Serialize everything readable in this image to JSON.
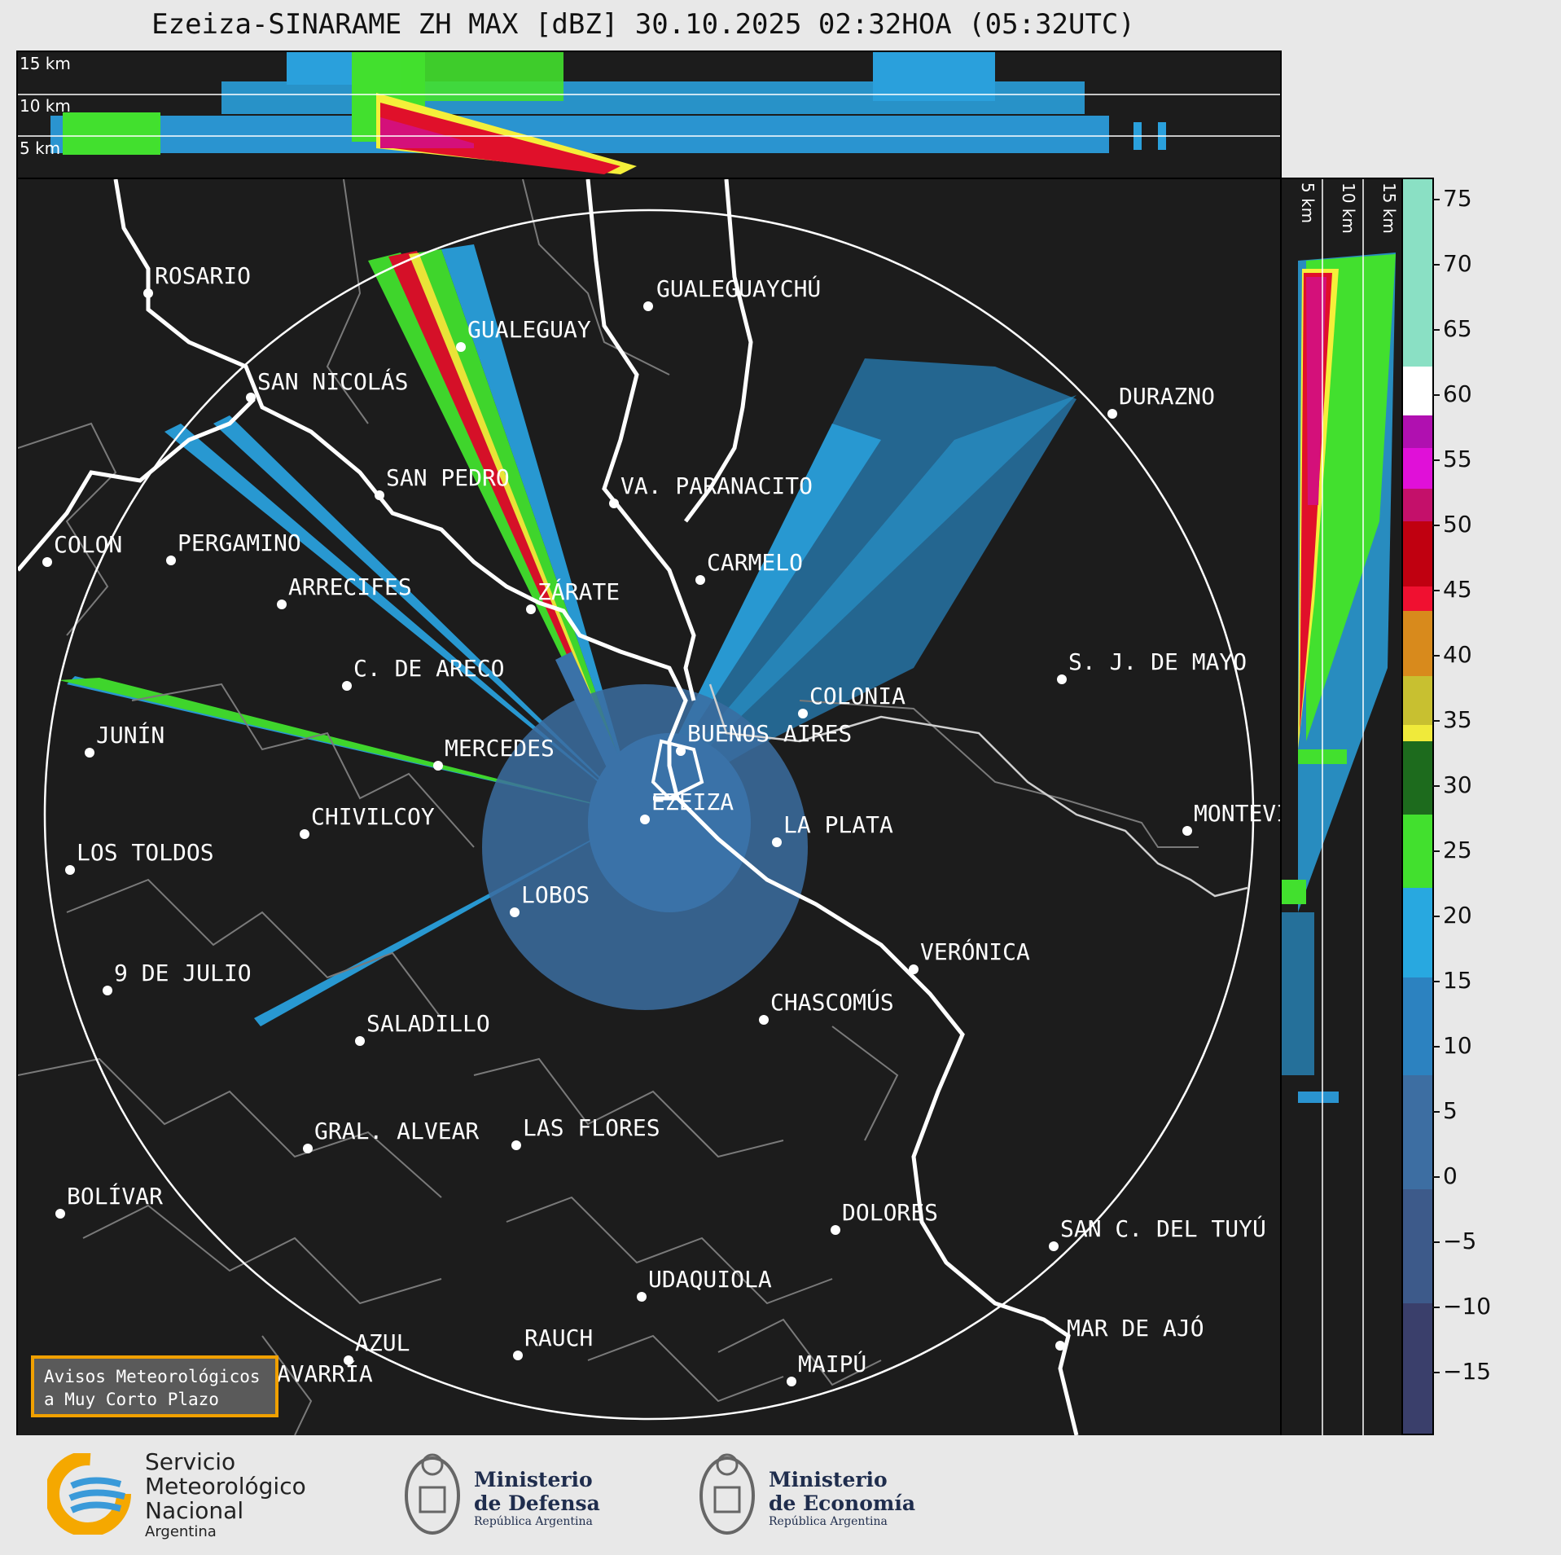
{
  "title": "Ezeiza-SINARAME ZH MAX [dBZ] 30.10.2025 02:32HOA (05:32UTC)",
  "top_panel": {
    "levels": [
      "15 km",
      "10 km",
      "5 km"
    ]
  },
  "side_panel": {
    "levels": [
      "5 km",
      "10 km",
      "15 km"
    ]
  },
  "colorbar": {
    "ticks": [
      "75",
      "70",
      "65",
      "60",
      "55",
      "50",
      "45",
      "40",
      "35",
      "30",
      "25",
      "20",
      "15",
      "10",
      "5",
      "0",
      "−5",
      "−10",
      "−15"
    ],
    "range": [
      -20,
      77
    ],
    "colors": {
      "low": "#3a3f6b",
      "mid_blue": "#3d72a8",
      "cyan": "#28a8e0",
      "green": "#42e02e",
      "dark_green": "#1d6b1d",
      "yellow": "#f5ef3a",
      "orange": "#d8901c",
      "red": "#e0102a",
      "magenta": "#e010d8",
      "purple": "#8a0a8a",
      "white": "#ffffff",
      "mint": "#88e0c0"
    }
  },
  "cities": [
    {
      "name": "ROSARIO"
    },
    {
      "name": "GUALEGUAYCHÚ"
    },
    {
      "name": "GUALEGUAY"
    },
    {
      "name": "SAN NICOLÁS"
    },
    {
      "name": "DURAZNO"
    },
    {
      "name": "SAN PEDRO"
    },
    {
      "name": "VA. PARANACITO"
    },
    {
      "name": "COLON"
    },
    {
      "name": "PERGAMINO"
    },
    {
      "name": "CARMELO"
    },
    {
      "name": "ARRECIFES"
    },
    {
      "name": "ZÁRATE"
    },
    {
      "name": "S. J. DE MAYO"
    },
    {
      "name": "C. DE ARECO"
    },
    {
      "name": "COLONIA"
    },
    {
      "name": "JUNÍN"
    },
    {
      "name": "BUENOS AIRES"
    },
    {
      "name": "MERCEDES"
    },
    {
      "name": "MONTEVIDEO"
    },
    {
      "name": "EZEIZA"
    },
    {
      "name": "CHIVILCOY"
    },
    {
      "name": "LA PLATA"
    },
    {
      "name": "LOS TOLDOS"
    },
    {
      "name": "LOBOS"
    },
    {
      "name": "VERÓNICA"
    },
    {
      "name": "9 DE JULIO"
    },
    {
      "name": "CHASCOMÚS"
    },
    {
      "name": "SALADILLO"
    },
    {
      "name": "GRAL. ALVEAR"
    },
    {
      "name": "LAS FLORES"
    },
    {
      "name": "BOLÍVAR"
    },
    {
      "name": "DOLORES"
    },
    {
      "name": "SAN C. DEL TUYÚ"
    },
    {
      "name": "UDAQUIOLA"
    },
    {
      "name": "MAR DE AJÓ"
    },
    {
      "name": "AZUL"
    },
    {
      "name": "RAUCH"
    },
    {
      "name": "OLAVARRÍA"
    },
    {
      "name": "MAIPÚ"
    }
  ],
  "alert": {
    "line1": "Avisos Meteorológicos",
    "line2": "a Muy Corto Plazo"
  },
  "footer": {
    "smn": {
      "line1": "Servicio",
      "line2": "Meteorológico",
      "line3": "Nacional",
      "line4": "Argentina"
    },
    "defensa": {
      "line1": "Ministerio",
      "line2": "de Defensa",
      "line3": "República Argentina"
    },
    "economia": {
      "line1": "Ministerio",
      "line2": "de Economía",
      "line3": "República Argentina"
    }
  }
}
